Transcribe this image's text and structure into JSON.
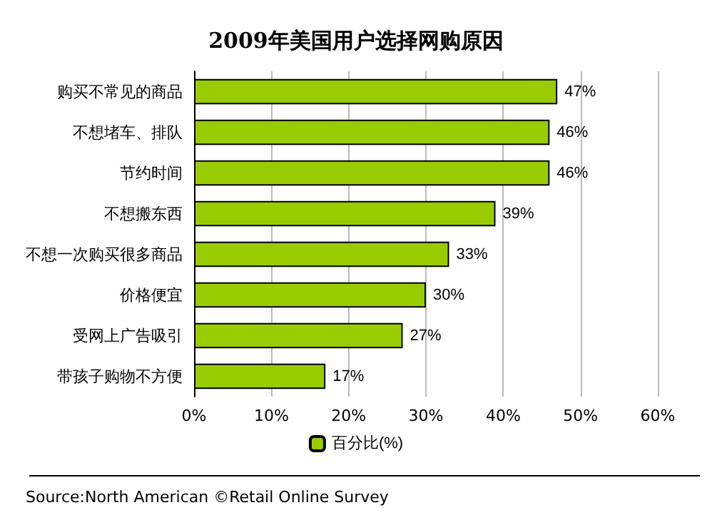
{
  "chart_data": {
    "type": "bar",
    "orientation": "horizontal",
    "title": "2009年美国用户选择网购原因",
    "categories": [
      "购买不常见的商品",
      "不想堵车、排队",
      "节约时间",
      "不想搬东西",
      "不想一次购买很多商品",
      "价格便宜",
      "受网上广告吸引",
      "带孩子购物不方便"
    ],
    "series": [
      {
        "name": "百分比(%)",
        "color": "#99cc00",
        "values": [
          47,
          46,
          46,
          39,
          33,
          30,
          27,
          17
        ],
        "value_labels": [
          "47%",
          "46%",
          "46%",
          "39%",
          "33%",
          "30%",
          "27%",
          "17%"
        ]
      }
    ],
    "xlim": [
      0,
      60
    ],
    "xticks": [
      {
        "value": 0,
        "label": "0%"
      },
      {
        "value": 10,
        "label": "10%"
      },
      {
        "value": 20,
        "label": "20%"
      },
      {
        "value": 30,
        "label": "30%"
      },
      {
        "value": 40,
        "label": "40%"
      },
      {
        "value": 50,
        "label": "50%"
      },
      {
        "value": 60,
        "label": "60%"
      }
    ],
    "grid": "x",
    "legend": "bottom",
    "annotations": [
      "Source:North American ©Retail Online Survey"
    ]
  }
}
